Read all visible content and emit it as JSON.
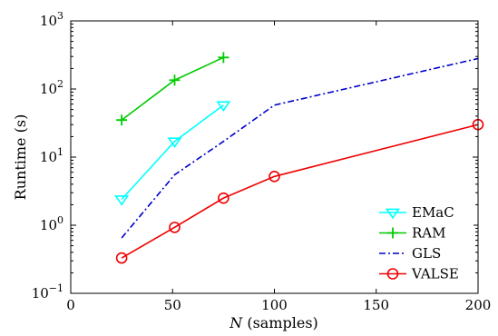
{
  "chart_data": {
    "type": "line",
    "title": "",
    "xlabel_italic": "N",
    "xlabel_rest": " (samples)",
    "ylabel": "Runtime (s)",
    "xlim": [
      0,
      200
    ],
    "ylim": [
      0.1,
      1000
    ],
    "yscale": "log",
    "grid": false,
    "legend_position": "bottom-right",
    "x_ticks": [
      0,
      50,
      100,
      150,
      200
    ],
    "x_tick_labels": [
      "0",
      "50",
      "100",
      "150",
      "200"
    ],
    "y_ticks": [
      0.1,
      1,
      10,
      100,
      1000
    ],
    "y_tick_bases": [
      "10",
      "10",
      "10",
      "10",
      "10"
    ],
    "y_tick_exponents": [
      "−1",
      "0",
      "1",
      "2",
      "3"
    ],
    "series": [
      {
        "name": "EMaC",
        "color": "#00ffff",
        "style": "solid",
        "marker": "triangle-down",
        "x": [
          25,
          51,
          75
        ],
        "y": [
          2.4,
          17,
          58
        ]
      },
      {
        "name": "RAM",
        "color": "#00cc00",
        "style": "solid",
        "marker": "plus",
        "x": [
          25,
          51,
          75
        ],
        "y": [
          35,
          135,
          290
        ]
      },
      {
        "name": "GLS",
        "color": "#0000cc",
        "style": "dashdot",
        "marker": "none",
        "x": [
          25,
          51,
          75,
          100,
          200
        ],
        "y": [
          0.65,
          5.5,
          17,
          58,
          280
        ]
      },
      {
        "name": "VALSE",
        "color": "#ee0000",
        "style": "solid",
        "marker": "circle",
        "x": [
          25,
          51,
          75,
          100,
          200
        ],
        "y": [
          0.33,
          0.93,
          2.5,
          5.2,
          30
        ]
      }
    ]
  }
}
